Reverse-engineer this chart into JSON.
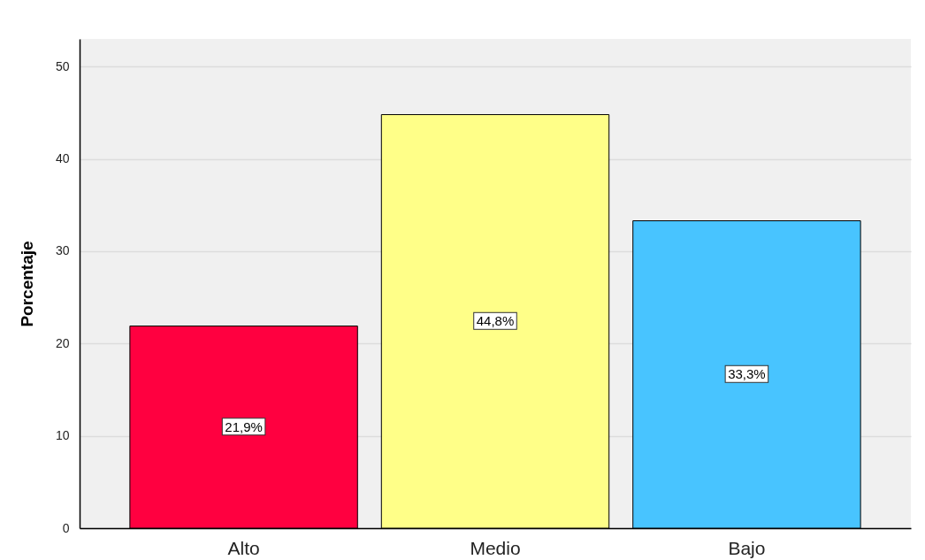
{
  "chart_data": {
    "type": "bar",
    "ylabel": "Porcentaje",
    "categories": [
      "Alto",
      "Medio",
      "Bajo"
    ],
    "values": [
      21.9,
      44.8,
      33.3
    ],
    "colors": [
      "#ff0040",
      "#ffff88",
      "#48c4ff"
    ],
    "value_labels": [
      "21,9%",
      "44,8%",
      "33,3%"
    ],
    "ylim": [
      0,
      53
    ],
    "yticks": [
      0,
      10,
      20,
      30,
      40,
      50
    ],
    "grid": "y"
  }
}
